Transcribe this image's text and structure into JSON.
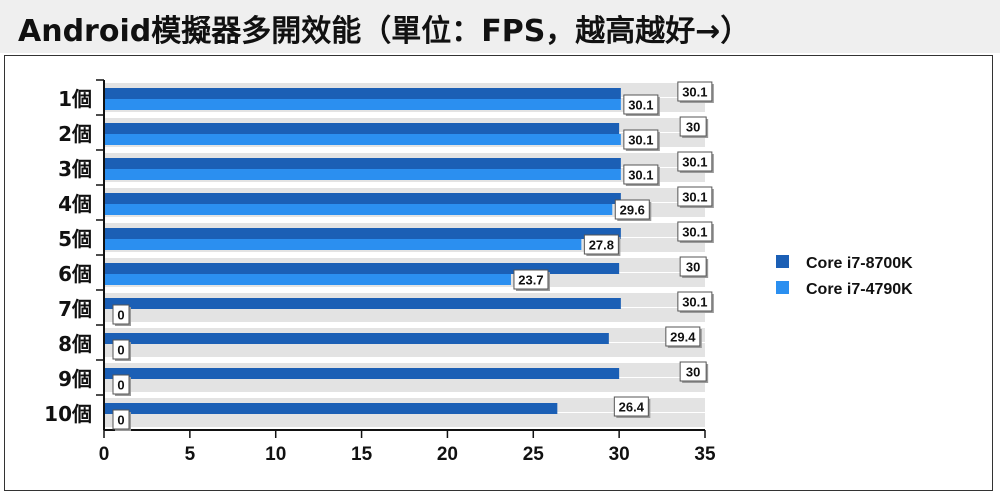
{
  "title": "Android模擬器多開效能（單位：FPS，越高越好→）",
  "chart_data": {
    "type": "bar",
    "orientation": "horizontal",
    "title": "Android模擬器多開效能（單位：FPS，越高越好→）",
    "categories": [
      "1個",
      "2個",
      "3個",
      "4個",
      "5個",
      "6個",
      "7個",
      "8個",
      "9個",
      "10個"
    ],
    "series": [
      {
        "name": "Core i7-8700K",
        "color": "#1b5fb5",
        "values": [
          30.1,
          30,
          30.1,
          30.1,
          30.1,
          30,
          30.1,
          29.4,
          30,
          26.4
        ],
        "labels": [
          "30.1",
          "30",
          "30.1",
          "30.1",
          "30.1",
          "30",
          "30.1",
          "29.4",
          "30",
          "26.4"
        ]
      },
      {
        "name": "Core i7-4790K",
        "color": "#2b8ff0",
        "values": [
          30.1,
          30.1,
          30.1,
          29.6,
          27.8,
          23.7,
          0,
          0,
          0,
          0
        ],
        "labels": [
          "30.1",
          "30.1",
          "30.1",
          "29.6",
          "27.8",
          "23.7",
          "0",
          "0",
          "0",
          "0"
        ]
      }
    ],
    "xlim": [
      0,
      35
    ],
    "xticks": [
      "0",
      "5",
      "10",
      "15",
      "20",
      "25",
      "30",
      "35"
    ],
    "legend_position": "right",
    "grid": false
  }
}
